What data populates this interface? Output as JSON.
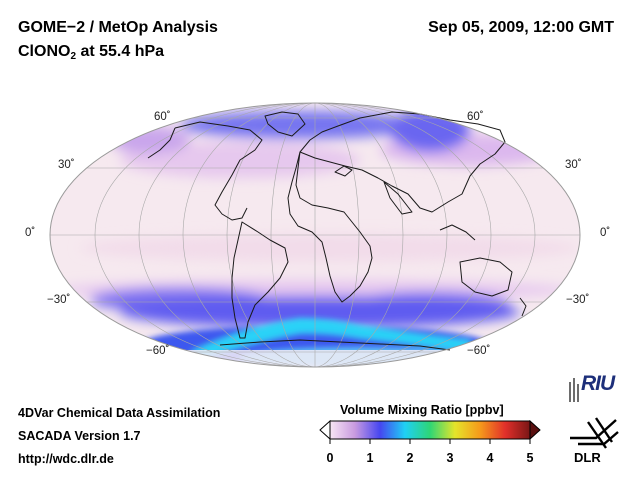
{
  "header": {
    "title_line1": "GOME−2 / MetOp Analysis",
    "species_prefix": "ClONO",
    "species_subscript": "2",
    "species_suffix": " at 55.4 hPa",
    "datetime": "Sep 05, 2009, 12:00 GMT"
  },
  "map": {
    "projection": "Mollweide",
    "latitude_labels": {
      "n60": "60˚",
      "n30": "30˚",
      "eq": "0˚",
      "s30": "−30˚",
      "s60": "−60˚"
    },
    "colors": {
      "background_fill": "#f5e6ee",
      "low_band": "#5f5cf0",
      "polar_vortex": "#2ad2f7",
      "coastline": "#1a1a1a",
      "graticule": "#a8a8a8"
    }
  },
  "footer": {
    "line1": "4DVar Chemical Data Assimilation",
    "line2": "SACADA Version 1.7",
    "line3": "http://wdc.dlr.de"
  },
  "colorbar": {
    "title": "Volume Mixing Ratio [ppbv]",
    "ticks": [
      "0",
      "1",
      "2",
      "3",
      "4",
      "5"
    ],
    "min": 0,
    "max": 5,
    "stops": [
      "#f8e6f4",
      "#c89ae0",
      "#4646f0",
      "#1fd0f5",
      "#2ed676",
      "#e5e42a",
      "#f59a1b",
      "#e2302a",
      "#7a1616"
    ]
  },
  "logos": {
    "riu": "RIU",
    "dlr": "DLR"
  }
}
